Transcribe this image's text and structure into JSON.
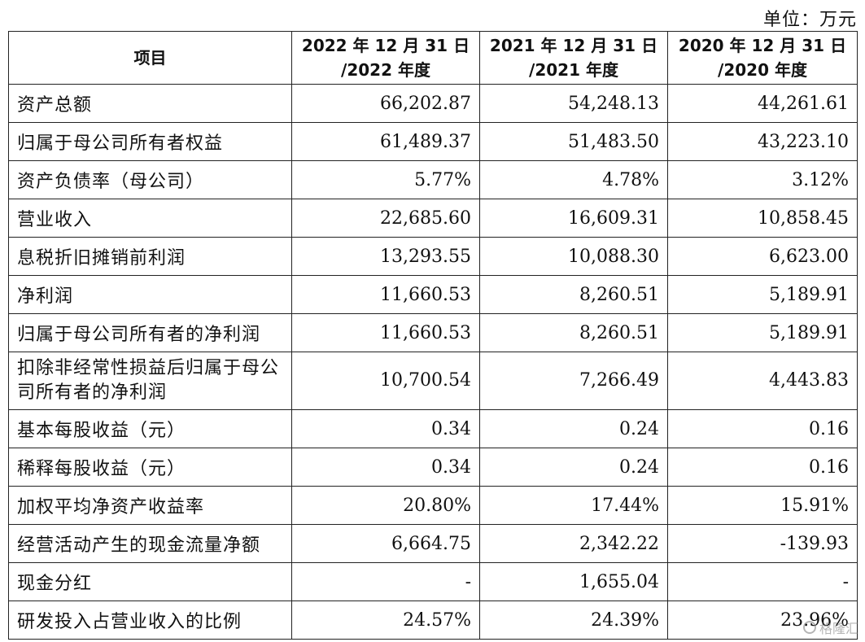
{
  "unit_label": "单位：万元",
  "header": {
    "col0": "项目",
    "col1_l1": "2022 年 12 月 31 日",
    "col1_l2": "/2022 年度",
    "col2_l1": "2021 年 12 月 31 日",
    "col2_l2": "/2021 年度",
    "col3_l1": "2020 年 12 月 31 日",
    "col3_l2": "/2020 年度"
  },
  "rows": [
    {
      "label": "资产总额",
      "v2022": "66,202.87",
      "v2021": "54,248.13",
      "v2020": "44,261.61"
    },
    {
      "label": "归属于母公司所有者权益",
      "v2022": "61,489.37",
      "v2021": "51,483.50",
      "v2020": "43,223.10"
    },
    {
      "label": "资产负债率（母公司）",
      "v2022": "5.77%",
      "v2021": "4.78%",
      "v2020": "3.12%"
    },
    {
      "label": "营业收入",
      "v2022": "22,685.60",
      "v2021": "16,609.31",
      "v2020": "10,858.45"
    },
    {
      "label": "息税折旧摊销前利润",
      "v2022": "13,293.55",
      "v2021": "10,088.30",
      "v2020": "6,623.00"
    },
    {
      "label": "净利润",
      "v2022": "11,660.53",
      "v2021": "8,260.51",
      "v2020": "5,189.91"
    },
    {
      "label": "归属于母公司所有者的净利润",
      "v2022": "11,660.53",
      "v2021": "8,260.51",
      "v2020": "5,189.91"
    },
    {
      "label": "扣除非经常性损益后归属于母公司所有者的净利润",
      "v2022": "10,700.54",
      "v2021": "7,266.49",
      "v2020": "4,443.83"
    },
    {
      "label": "基本每股收益（元）",
      "v2022": "0.34",
      "v2021": "0.24",
      "v2020": "0.16"
    },
    {
      "label": "稀释每股收益（元）",
      "v2022": "0.34",
      "v2021": "0.24",
      "v2020": "0.16"
    },
    {
      "label": "加权平均净资产收益率",
      "v2022": "20.80%",
      "v2021": "17.44%",
      "v2020": "15.91%"
    },
    {
      "label": "经营活动产生的现金流量净额",
      "v2022": "6,664.75",
      "v2021": "2,342.22",
      "v2020": "-139.93"
    },
    {
      "label": "现金分红",
      "v2022": "-",
      "v2021": "1,655.04",
      "v2020": "-"
    },
    {
      "label": "研发投入占营业收入的比例",
      "v2022": "24.57%",
      "v2021": "24.39%",
      "v2020": "23.96%"
    }
  ],
  "watermark": {
    "text": "格隆汇",
    "icon": "gelonghui-logo-icon"
  }
}
